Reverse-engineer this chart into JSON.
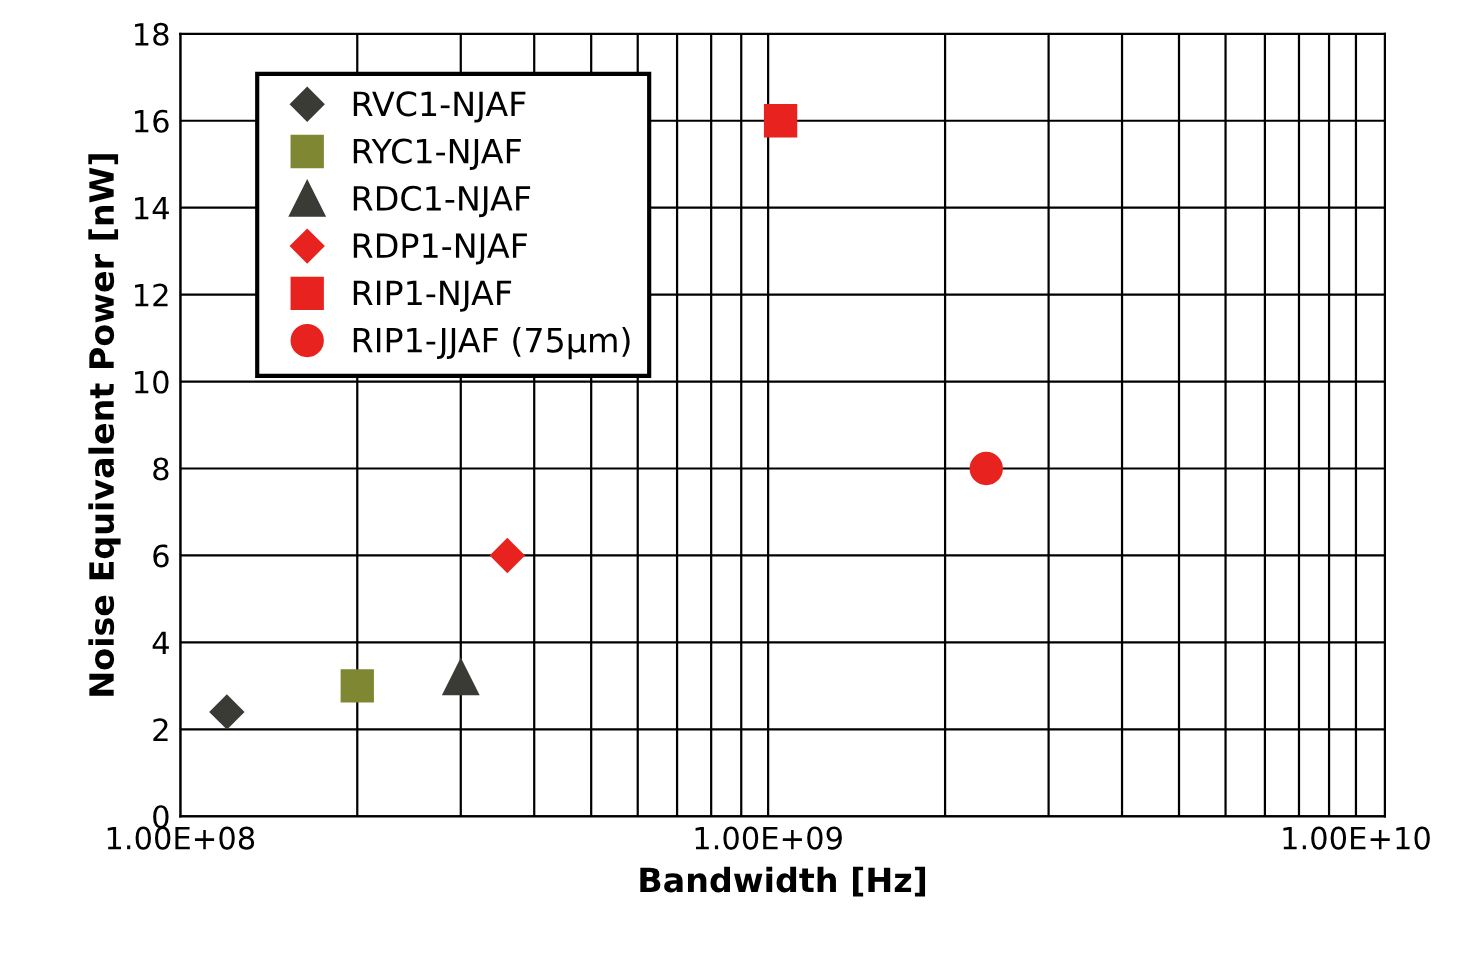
{
  "chart_data": {
    "type": "scatter",
    "xlabel": "Bandwidth [Hz]",
    "ylabel": "Noise Equivalent Power [nW]",
    "log": "x",
    "xlim": [
      100000000.0,
      11200000000.0
    ],
    "xticks": [
      {
        "value": 100000000.0,
        "label": "1.00E+08"
      },
      {
        "value": 1000000000.0,
        "label": "1.00E+09"
      },
      {
        "value": 10000000000.0,
        "label": "1.00E+10"
      }
    ],
    "ylim": [
      0,
      18
    ],
    "yticks": [
      0,
      2,
      4,
      6,
      8,
      10,
      12,
      14,
      16,
      18
    ],
    "grid": true,
    "legend": "top left",
    "series": [
      {
        "name": "RVC1-NJAF",
        "color": "#3b3b35",
        "marker": "diamond",
        "x": [
          120000000.0
        ],
        "values": [
          2.4
        ]
      },
      {
        "name": "RYC1-NJAF",
        "color": "#7f8733",
        "marker": "square",
        "x": [
          200000000.0
        ],
        "values": [
          3.0
        ]
      },
      {
        "name": "RDC1-NJAF",
        "color": "#3b3b35",
        "marker": "triangle",
        "x": [
          300000000.0
        ],
        "values": [
          3.2
        ]
      },
      {
        "name": "RDP1-NJAF",
        "color": "#e8231f",
        "marker": "diamond",
        "x": [
          360000000.0
        ],
        "values": [
          6.0
        ]
      },
      {
        "name": "RIP1-NJAF",
        "color": "#e8231f",
        "marker": "square",
        "x": [
          1050000000.0
        ],
        "values": [
          16.0
        ]
      },
      {
        "name": "RIP1-JJAF (75µm)",
        "color": "#e8231f",
        "marker": "circle",
        "x": [
          2350000000.0
        ],
        "values": [
          8.0
        ]
      }
    ]
  }
}
